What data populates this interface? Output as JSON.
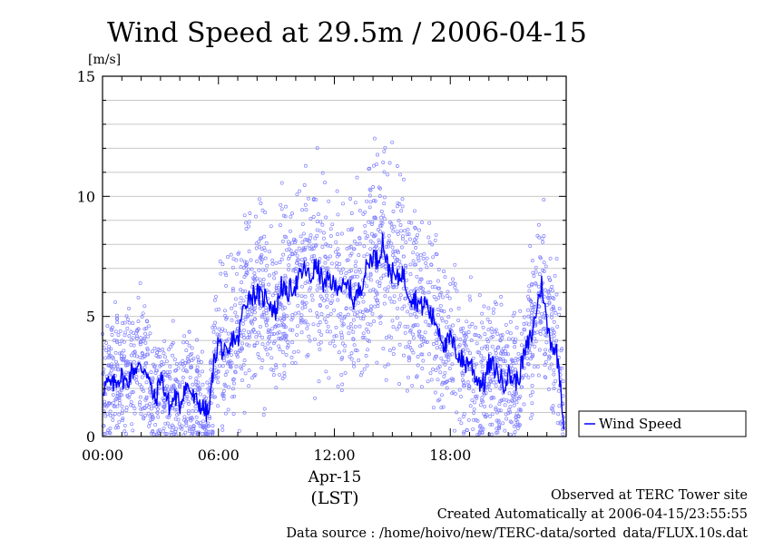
{
  "page": {
    "title": "Wind Speed at 29.5m / 2006-04-15",
    "unit": "[m/s]",
    "date_label": "Apr-15",
    "tz_label": "(LST)",
    "footer": [
      "Observed at TERC Tower site",
      "Created Automatically at 2006-04-15/23:55:55",
      "Data source : /home/hoivo/new/TERC-data/sorted_data/FLUX.10s.dat"
    ]
  },
  "colors": {
    "series": "#0000ff",
    "samples": "#8080ff",
    "grid": "#c8c8c8",
    "axis": "#000000"
  },
  "chart_data": {
    "type": "line",
    "title": "Wind Speed at 29.5m / 2006-04-15",
    "ylabel": "[m/s]",
    "xlabel": "(LST)",
    "x_unit": "hours",
    "xlim": [
      0,
      24
    ],
    "ylim": [
      0,
      15
    ],
    "x_ticks": [
      0,
      6,
      12,
      18
    ],
    "x_tick_labels": [
      "00:00",
      "06:00",
      "12:00",
      "18:00"
    ],
    "y_ticks": [
      0,
      5,
      10,
      15
    ],
    "y_tick_labels": [
      "0",
      "5",
      "10",
      "15"
    ],
    "y_minor_step": 1,
    "grid": true,
    "legend": "right",
    "series": [
      {
        "name": "Wind Speed",
        "style": "line",
        "x": [
          0.0,
          0.25,
          0.5,
          0.75,
          1.0,
          1.25,
          1.5,
          1.75,
          2.0,
          2.25,
          2.5,
          2.75,
          3.0,
          3.25,
          3.5,
          3.75,
          4.0,
          4.25,
          4.5,
          4.75,
          5.0,
          5.25,
          5.5,
          5.75,
          6.0,
          6.25,
          6.5,
          6.75,
          7.0,
          7.25,
          7.5,
          7.75,
          8.0,
          8.25,
          8.5,
          8.75,
          9.0,
          9.25,
          9.5,
          9.75,
          10.0,
          10.25,
          10.5,
          10.75,
          11.0,
          11.25,
          11.5,
          11.75,
          12.0,
          12.25,
          12.5,
          12.75,
          13.0,
          13.25,
          13.5,
          13.75,
          14.0,
          14.25,
          14.5,
          14.75,
          15.0,
          15.25,
          15.5,
          15.75,
          16.0,
          16.25,
          16.5,
          16.75,
          17.0,
          17.25,
          17.5,
          17.75,
          18.0,
          18.25,
          18.5,
          18.75,
          19.0,
          19.25,
          19.5,
          19.75,
          20.0,
          20.25,
          20.5,
          20.75,
          21.0,
          21.25,
          21.5,
          21.75,
          22.0,
          22.25,
          22.5,
          22.75,
          23.0,
          23.25,
          23.5,
          23.75
        ],
        "values": [
          2.0,
          2.2,
          2.1,
          2.4,
          2.5,
          2.2,
          2.7,
          2.9,
          2.8,
          2.9,
          2.0,
          1.4,
          2.6,
          1.8,
          1.2,
          1.7,
          1.3,
          2.1,
          2.0,
          1.5,
          1.4,
          1.1,
          0.9,
          3.0,
          4.0,
          3.5,
          3.2,
          4.2,
          3.9,
          5.2,
          5.8,
          5.9,
          6.0,
          5.7,
          5.9,
          5.4,
          5.2,
          6.4,
          5.8,
          6.2,
          6.3,
          6.7,
          7.0,
          6.5,
          7.1,
          6.8,
          6.2,
          6.6,
          6.2,
          6.4,
          6.1,
          6.3,
          5.6,
          6.0,
          6.6,
          7.2,
          7.6,
          7.3,
          8.2,
          7.1,
          6.8,
          6.5,
          6.9,
          6.2,
          5.8,
          5.7,
          5.4,
          5.6,
          5.0,
          4.8,
          4.3,
          3.7,
          4.1,
          3.6,
          3.3,
          3.0,
          3.2,
          2.6,
          2.3,
          2.2,
          3.0,
          2.9,
          2.6,
          2.2,
          2.6,
          2.4,
          2.3,
          3.2,
          3.8,
          4.3,
          5.5,
          6.4,
          4.6,
          3.9,
          3.5,
          2.0
        ]
      },
      {
        "name": "",
        "style": "scatter",
        "sampling": "10 s samples around the line",
        "typical_spread": 1.8
      }
    ]
  }
}
